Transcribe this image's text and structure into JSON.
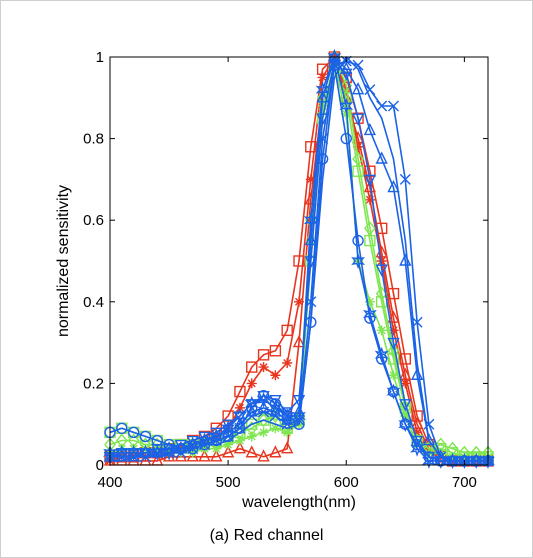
{
  "caption": "(a) Red channel",
  "chart_data": {
    "type": "line",
    "title": "",
    "xlabel": "wavelength(nm)",
    "ylabel": "normalized sensitivity",
    "xlim": [
      400,
      720
    ],
    "ylim": [
      0,
      1
    ],
    "xticks": [
      400,
      500,
      600,
      700
    ],
    "yticks": [
      0,
      0.2,
      0.4,
      0.6,
      0.8,
      1
    ],
    "ytick_labels": [
      "0",
      "0.2",
      "0.4",
      "0.6",
      "0.8",
      "1"
    ],
    "grid": false,
    "legend": "none",
    "x": [
      400,
      410,
      420,
      430,
      440,
      450,
      460,
      470,
      480,
      490,
      500,
      510,
      520,
      530,
      540,
      550,
      560,
      570,
      580,
      590,
      600,
      610,
      620,
      630,
      640,
      650,
      660,
      670,
      680,
      690,
      700,
      710,
      720
    ],
    "series": [
      {
        "color": "#e8351e",
        "marker": "star",
        "values": [
          0.01,
          0.02,
          0.02,
          0.02,
          0.03,
          0.03,
          0.04,
          0.05,
          0.06,
          0.07,
          0.09,
          0.14,
          0.2,
          0.24,
          0.22,
          0.25,
          0.4,
          0.7,
          0.95,
          1.0,
          0.92,
          0.78,
          0.65,
          0.5,
          0.33,
          0.2,
          0.08,
          0.03,
          0.02,
          0.01,
          0.01,
          0.01,
          0.01
        ]
      },
      {
        "color": "#e8351e",
        "marker": "square",
        "values": [
          0.02,
          0.02,
          0.02,
          0.03,
          0.03,
          0.04,
          0.05,
          0.06,
          0.07,
          0.09,
          0.12,
          0.18,
          0.24,
          0.27,
          0.28,
          0.33,
          0.5,
          0.78,
          0.97,
          1.0,
          0.95,
          0.85,
          0.72,
          0.58,
          0.42,
          0.26,
          0.12,
          0.05,
          0.02,
          0.01,
          0.01,
          0.01,
          0.01
        ]
      },
      {
        "color": "#e8351e",
        "marker": "triangle",
        "values": [
          0.01,
          0.01,
          0.01,
          0.01,
          0.01,
          0.02,
          0.02,
          0.02,
          0.02,
          0.02,
          0.03,
          0.04,
          0.03,
          0.02,
          0.03,
          0.04,
          0.3,
          0.65,
          0.9,
          1.0,
          0.9,
          0.8,
          0.68,
          0.52,
          0.36,
          0.22,
          0.1,
          0.04,
          0.02,
          0.01,
          0.01,
          0.01,
          0.01
        ]
      },
      {
        "color": "#7fe650",
        "marker": "diamond",
        "values": [
          0.05,
          0.06,
          0.06,
          0.05,
          0.05,
          0.04,
          0.04,
          0.04,
          0.05,
          0.05,
          0.06,
          0.08,
          0.09,
          0.11,
          0.12,
          0.1,
          0.12,
          0.6,
          0.9,
          1.0,
          0.93,
          0.75,
          0.58,
          0.42,
          0.28,
          0.14,
          0.06,
          0.04,
          0.05,
          0.04,
          0.03,
          0.03,
          0.03
        ]
      },
      {
        "color": "#7fe650",
        "marker": "star",
        "values": [
          0.03,
          0.04,
          0.04,
          0.04,
          0.04,
          0.03,
          0.03,
          0.03,
          0.04,
          0.04,
          0.05,
          0.06,
          0.07,
          0.08,
          0.09,
          0.08,
          0.1,
          0.55,
          0.88,
          0.98,
          0.86,
          0.5,
          0.4,
          0.33,
          0.22,
          0.12,
          0.05,
          0.03,
          0.03,
          0.02,
          0.02,
          0.02,
          0.02
        ]
      },
      {
        "color": "#7fe650",
        "marker": "square",
        "values": [
          0.08,
          0.09,
          0.08,
          0.07,
          0.06,
          0.05,
          0.05,
          0.05,
          0.05,
          0.06,
          0.07,
          0.08,
          0.1,
          0.11,
          0.1,
          0.09,
          0.11,
          0.5,
          0.85,
          0.97,
          0.9,
          0.72,
          0.55,
          0.4,
          0.26,
          0.14,
          0.06,
          0.04,
          0.04,
          0.03,
          0.02,
          0.02,
          0.02
        ]
      },
      {
        "color": "#1a62e6",
        "marker": "circle",
        "values": [
          0.08,
          0.09,
          0.08,
          0.07,
          0.06,
          0.05,
          0.04,
          0.04,
          0.05,
          0.06,
          0.07,
          0.09,
          0.14,
          0.17,
          0.15,
          0.12,
          0.1,
          0.35,
          0.75,
          0.98,
          0.8,
          0.55,
          0.36,
          0.26,
          0.18,
          0.1,
          0.05,
          0.02,
          0.01,
          0.01,
          0.01,
          0.01,
          0.01
        ]
      },
      {
        "color": "#1a62e6",
        "marker": "hexagram",
        "values": [
          0.03,
          0.03,
          0.03,
          0.03,
          0.03,
          0.03,
          0.04,
          0.05,
          0.06,
          0.07,
          0.09,
          0.12,
          0.15,
          0.16,
          0.14,
          0.12,
          0.12,
          0.6,
          0.92,
          1.0,
          0.88,
          0.5,
          0.37,
          0.27,
          0.18,
          0.1,
          0.04,
          0.01,
          0.01,
          0.01,
          0.01,
          0.01,
          0.01
        ]
      },
      {
        "color": "#1a62e6",
        "marker": "x",
        "values": [
          0.02,
          0.02,
          0.02,
          0.02,
          0.03,
          0.03,
          0.03,
          0.04,
          0.05,
          0.06,
          0.07,
          0.09,
          0.12,
          0.13,
          0.12,
          0.1,
          0.11,
          0.4,
          0.8,
          0.98,
          0.99,
          0.98,
          0.92,
          0.88,
          0.88,
          0.7,
          0.35,
          0.1,
          0.02,
          0.01,
          0.01,
          0.01,
          0.01
        ]
      },
      {
        "color": "#1a62e6",
        "marker": "triangle",
        "values": [
          0.02,
          0.02,
          0.02,
          0.03,
          0.03,
          0.04,
          0.04,
          0.05,
          0.06,
          0.07,
          0.08,
          0.1,
          0.13,
          0.14,
          0.13,
          0.11,
          0.13,
          0.55,
          0.9,
          1.0,
          0.97,
          0.92,
          0.82,
          0.75,
          0.68,
          0.5,
          0.22,
          0.06,
          0.02,
          0.01,
          0.01,
          0.01,
          0.01
        ]
      },
      {
        "color": "#1a62e6",
        "marker": "triangle-down",
        "values": [
          0.02,
          0.03,
          0.03,
          0.03,
          0.04,
          0.04,
          0.05,
          0.06,
          0.07,
          0.08,
          0.1,
          0.12,
          0.15,
          0.17,
          0.16,
          0.13,
          0.16,
          0.5,
          0.85,
          0.99,
          0.96,
          0.85,
          0.7,
          0.48,
          0.3,
          0.15,
          0.06,
          0.02,
          0.01,
          0.01,
          0.01,
          0.01,
          0.01
        ]
      },
      {
        "color": "#1a62e6",
        "marker": "none",
        "values": [
          0.01,
          0.01,
          0.02,
          0.02,
          0.02,
          0.03,
          0.03,
          0.04,
          0.05,
          0.05,
          0.06,
          0.08,
          0.1,
          0.11,
          0.1,
          0.09,
          0.1,
          0.35,
          0.7,
          0.95,
          1.0,
          0.97,
          0.9,
          0.85,
          0.75,
          0.55,
          0.25,
          0.06,
          0.02,
          0.01,
          0.01,
          0.01,
          0.01
        ]
      }
    ]
  }
}
